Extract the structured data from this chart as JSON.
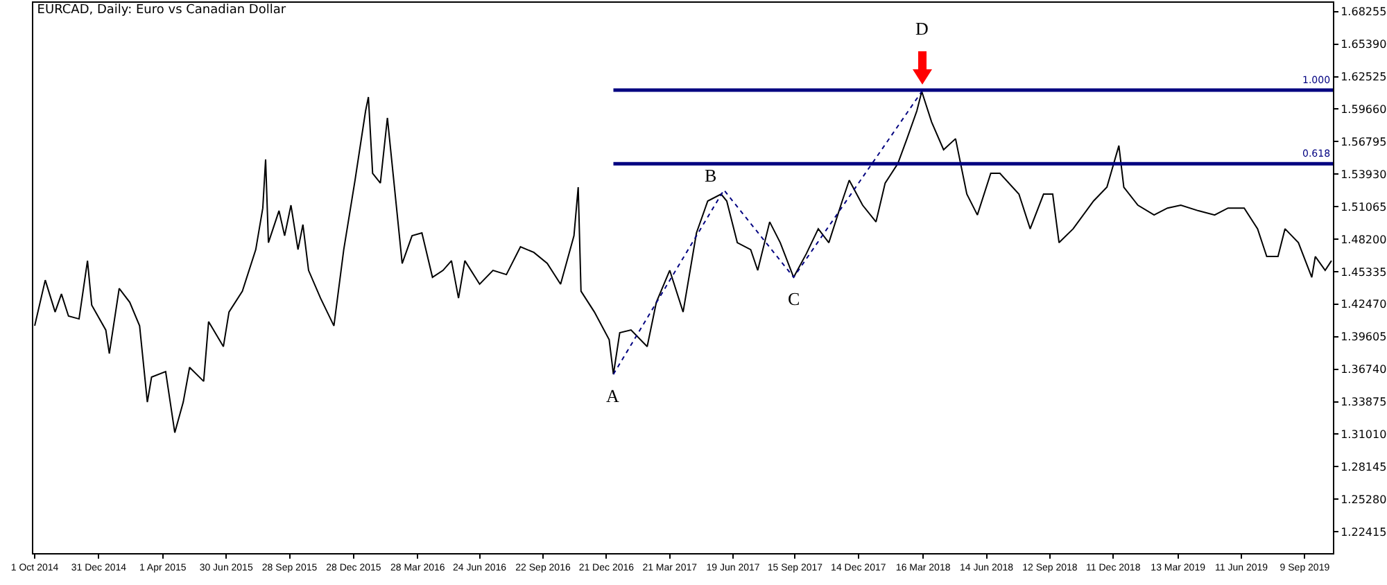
{
  "chart_data": {
    "type": "line",
    "title": "EURCAD, Daily: Euro vs Canadian Dollar",
    "grid": false,
    "marker": "none",
    "xlim": [
      "2014-09-29",
      "2019-10-19"
    ],
    "xticks": [
      {
        "value": "2014-10-01",
        "label": "1 Oct 2014"
      },
      {
        "value": "2014-12-31",
        "label": "31 Dec 2014"
      },
      {
        "value": "2015-04-01",
        "label": "1 Apr 2015"
      },
      {
        "value": "2015-06-30",
        "label": "30 Jun 2015"
      },
      {
        "value": "2015-09-28",
        "label": "28 Sep 2015"
      },
      {
        "value": "2015-12-28",
        "label": "28 Dec 2015"
      },
      {
        "value": "2016-03-28",
        "label": "28 Mar 2016"
      },
      {
        "value": "2016-06-24",
        "label": "24 Jun 2016"
      },
      {
        "value": "2016-09-22",
        "label": "22 Sep 2016"
      },
      {
        "value": "2016-12-21",
        "label": "21 Dec 2016"
      },
      {
        "value": "2017-03-21",
        "label": "21 Mar 2017"
      },
      {
        "value": "2017-06-19",
        "label": "19 Jun 2017"
      },
      {
        "value": "2017-09-15",
        "label": "15 Sep 2017"
      },
      {
        "value": "2017-12-14",
        "label": "14 Dec 2017"
      },
      {
        "value": "2018-03-16",
        "label": "16 Mar 2018"
      },
      {
        "value": "2018-06-14",
        "label": "14 Jun 2018"
      },
      {
        "value": "2018-09-12",
        "label": "12 Sep 2018"
      },
      {
        "value": "2018-12-11",
        "label": "11 Dec 2018"
      },
      {
        "value": "2019-03-13",
        "label": "13 Mar 2019"
      },
      {
        "value": "2019-06-11",
        "label": "11 Jun 2019"
      },
      {
        "value": "2019-09-09",
        "label": "9 Sep 2019"
      }
    ],
    "ylim": [
      1.2053,
      1.6903
    ],
    "yticks": [
      {
        "value": 1.68255,
        "label": "1.68255"
      },
      {
        "value": 1.6539,
        "label": "1.65390"
      },
      {
        "value": 1.62525,
        "label": "1.62525"
      },
      {
        "value": 1.5966,
        "label": "1.59660"
      },
      {
        "value": 1.56795,
        "label": "1.56795"
      },
      {
        "value": 1.5393,
        "label": "1.53930"
      },
      {
        "value": 1.51065,
        "label": "1.51065"
      },
      {
        "value": 1.482,
        "label": "1.48200"
      },
      {
        "value": 1.45335,
        "label": "1.45335"
      },
      {
        "value": 1.4247,
        "label": "1.42470"
      },
      {
        "value": 1.39605,
        "label": "1.39605"
      },
      {
        "value": 1.3674,
        "label": "1.36740"
      },
      {
        "value": 1.33875,
        "label": "1.33875"
      },
      {
        "value": 1.3101,
        "label": "1.31010"
      },
      {
        "value": 1.28145,
        "label": "1.28145"
      },
      {
        "value": 1.2528,
        "label": "1.25280"
      },
      {
        "value": 1.22415,
        "label": "1.22415"
      }
    ],
    "series": [
      {
        "color": "#000000",
        "line_style": "solid",
        "x": [
          "2014-10-01",
          "2014-10-16",
          "2014-10-30",
          "2014-11-08",
          "2014-11-18",
          "2014-12-03",
          "2014-12-15",
          "2014-12-21",
          "2015-01-10",
          "2015-01-15",
          "2015-01-29",
          "2015-02-13",
          "2015-02-27",
          "2015-03-10",
          "2015-03-16",
          "2015-04-05",
          "2015-04-18",
          "2015-04-30",
          "2015-05-09",
          "2015-05-29",
          "2015-06-05",
          "2015-06-26",
          "2015-07-04",
          "2015-07-23",
          "2015-08-11",
          "2015-08-21",
          "2015-08-25",
          "2015-08-29",
          "2015-09-13",
          "2015-09-21",
          "2015-09-30",
          "2015-10-10",
          "2015-10-17",
          "2015-10-25",
          "2015-11-11",
          "2015-11-30",
          "2015-12-14",
          "2015-12-30",
          "2016-01-14",
          "2016-01-18",
          "2016-01-24",
          "2016-02-04",
          "2016-02-14",
          "2016-02-20",
          "2016-03-06",
          "2016-03-20",
          "2016-04-03",
          "2016-04-18",
          "2016-05-03",
          "2016-05-15",
          "2016-05-25",
          "2016-06-03",
          "2016-06-24",
          "2016-07-13",
          "2016-08-01",
          "2016-08-21",
          "2016-09-09",
          "2016-09-28",
          "2016-10-17",
          "2016-11-05",
          "2016-11-11",
          "2016-11-15",
          "2016-12-04",
          "2016-12-25",
          "2016-12-31",
          "2017-01-09",
          "2017-01-25",
          "2017-02-17",
          "2017-03-02",
          "2017-03-21",
          "2017-04-09",
          "2017-04-28",
          "2017-05-14",
          "2017-06-02",
          "2017-06-10",
          "2017-06-25",
          "2017-07-14",
          "2017-07-24",
          "2017-08-10",
          "2017-08-25",
          "2017-09-13",
          "2017-10-01",
          "2017-10-18",
          "2017-11-02",
          "2017-11-21",
          "2017-12-01",
          "2017-12-20",
          "2018-01-08",
          "2018-01-21",
          "2018-02-08",
          "2018-02-21",
          "2018-03-07",
          "2018-03-14",
          "2018-03-28",
          "2018-04-14",
          "2018-05-01",
          "2018-05-17",
          "2018-06-01",
          "2018-06-20",
          "2018-07-03",
          "2018-07-30",
          "2018-08-15",
          "2018-09-03",
          "2018-09-16",
          "2018-09-25",
          "2018-10-15",
          "2018-11-13",
          "2018-12-02",
          "2018-12-19",
          "2018-12-26",
          "2019-01-15",
          "2019-02-07",
          "2019-02-26",
          "2019-03-17",
          "2019-04-11",
          "2019-05-04",
          "2019-05-23",
          "2019-06-15",
          "2019-07-04",
          "2019-07-17",
          "2019-08-02",
          "2019-08-12",
          "2019-08-31",
          "2019-09-19",
          "2019-09-24",
          "2019-10-08",
          "2019-10-17"
        ],
        "values": [
          1.4056,
          1.4459,
          1.4178,
          1.4337,
          1.4142,
          1.4117,
          1.463,
          1.4239,
          1.4019,
          1.3812,
          1.4386,
          1.4264,
          1.4056,
          1.3384,
          1.3604,
          1.3653,
          1.3115,
          1.3384,
          1.369,
          1.3567,
          1.4093,
          1.3873,
          1.4178,
          1.4361,
          1.4728,
          1.5094,
          1.5522,
          1.4789,
          1.507,
          1.485,
          1.5119,
          1.4728,
          1.4948,
          1.4545,
          1.43,
          1.4056,
          1.4728,
          1.5339,
          1.595,
          1.6072,
          1.54,
          1.5314,
          1.5889,
          1.5522,
          1.4606,
          1.485,
          1.4875,
          1.4484,
          1.4545,
          1.463,
          1.43,
          1.463,
          1.4423,
          1.4545,
          1.4508,
          1.4752,
          1.4703,
          1.4606,
          1.4423,
          1.485,
          1.5278,
          1.4361,
          1.4178,
          1.3934,
          1.3629,
          1.3995,
          1.4019,
          1.3873,
          1.4264,
          1.4545,
          1.4178,
          1.4875,
          1.5156,
          1.5217,
          1.5156,
          1.4789,
          1.4728,
          1.4545,
          1.4972,
          1.4789,
          1.4484,
          1.4691,
          1.4911,
          1.4789,
          1.5156,
          1.5339,
          1.5119,
          1.4972,
          1.5314,
          1.5485,
          1.5705,
          1.595,
          1.6121,
          1.5852,
          1.5608,
          1.5705,
          1.5217,
          1.5033,
          1.54,
          1.54,
          1.5217,
          1.4911,
          1.5217,
          1.5217,
          1.4789,
          1.4911,
          1.5156,
          1.5278,
          1.5644,
          1.5278,
          1.5119,
          1.5033,
          1.5094,
          1.5119,
          1.507,
          1.5033,
          1.5094,
          1.5094,
          1.4911,
          1.4667,
          1.4667,
          1.4911,
          1.4789,
          1.4484,
          1.4667,
          1.4545,
          1.463
        ]
      },
      {
        "color": "#000080",
        "line_style": "dotted",
        "x": [
          "2016-12-31",
          "2017-06-06",
          "2017-09-13",
          "2018-03-14"
        ],
        "values": [
          1.3629,
          1.5253,
          1.4484,
          1.6121
        ]
      }
    ],
    "ref_lines": [
      {
        "axis": "y",
        "value": 1.6133,
        "color": "#000080"
      },
      {
        "axis": "y",
        "value": 1.5485,
        "color": "#000080"
      }
    ],
    "annotations": [
      {
        "text": "1.000",
        "x": "2019-10-19",
        "y": 1.6133
      },
      {
        "text": "0.618",
        "x": "2019-10-19",
        "y": 1.5485
      },
      {
        "text": "A",
        "x": "2016-12-31",
        "y": 1.3629
      },
      {
        "text": "B",
        "x": "2017-06-06",
        "y": 1.5253
      },
      {
        "text": "C",
        "x": "2017-09-13",
        "y": 1.4484
      },
      {
        "text": "D",
        "x": "2018-03-14",
        "y": 1.6121
      }
    ]
  }
}
